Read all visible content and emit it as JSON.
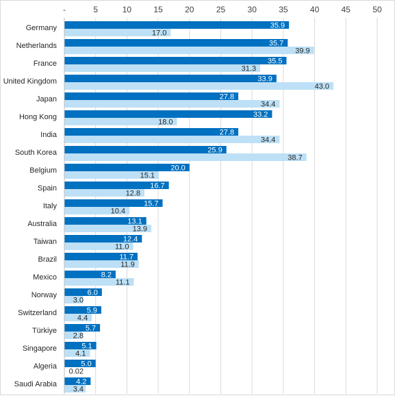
{
  "chart_data": {
    "type": "bar",
    "orientation": "horizontal",
    "xlim": [
      0,
      50
    ],
    "x_ticks": [
      "-",
      "5",
      "10",
      "15",
      "20",
      "25",
      "30",
      "35",
      "40",
      "45",
      "50"
    ],
    "x_axis_position": "top",
    "grid": true,
    "legend": "none",
    "categories": [
      "Germany",
      "Netherlands",
      "France",
      "United Kingdom",
      "Japan",
      "Hong Kong",
      "India",
      "South Korea",
      "Belgium",
      "Spain",
      "Italy",
      "Australia",
      "Taiwan",
      "Brazil",
      "Mexico",
      "Norway",
      "Switzerland",
      "Türkiye",
      "Singapore",
      "Algeria",
      "Saudi Arabia"
    ],
    "series": [
      {
        "color": "#0070c0",
        "values": [
          35.9,
          35.7,
          35.5,
          33.9,
          27.8,
          33.2,
          27.8,
          25.9,
          20.0,
          16.7,
          15.7,
          13.1,
          12.4,
          11.7,
          8.2,
          6.0,
          5.9,
          5.7,
          5.1,
          5.0,
          4.2
        ],
        "labels": [
          "35.9",
          "35.7",
          "35.5",
          "33.9",
          "27.8",
          "33.2",
          "27.8",
          "25.9",
          "20.0",
          "16.7",
          "15.7",
          "13.1",
          "12.4",
          "11.7",
          "8.2",
          "6.0",
          "5.9",
          "5.7",
          "5.1",
          "5.0",
          "4.2"
        ]
      },
      {
        "color": "#bde0f6",
        "values": [
          17.0,
          39.9,
          31.3,
          43.0,
          34.4,
          18.0,
          34.4,
          38.7,
          15.1,
          12.8,
          10.4,
          13.9,
          11.0,
          11.9,
          11.1,
          3.0,
          4.4,
          2.8,
          4.1,
          0.02,
          3.4
        ],
        "labels": [
          "17.0",
          "39.9",
          "31.3",
          "43.0",
          "34.4",
          "18.0",
          "34.4",
          "38.7",
          "15.1",
          "12.8",
          "10.4",
          "13.9",
          "11.0",
          "11.9",
          "11.1",
          "3.0",
          "4.4",
          "2.8",
          "4.1",
          "0.02",
          "3.4"
        ]
      }
    ]
  }
}
